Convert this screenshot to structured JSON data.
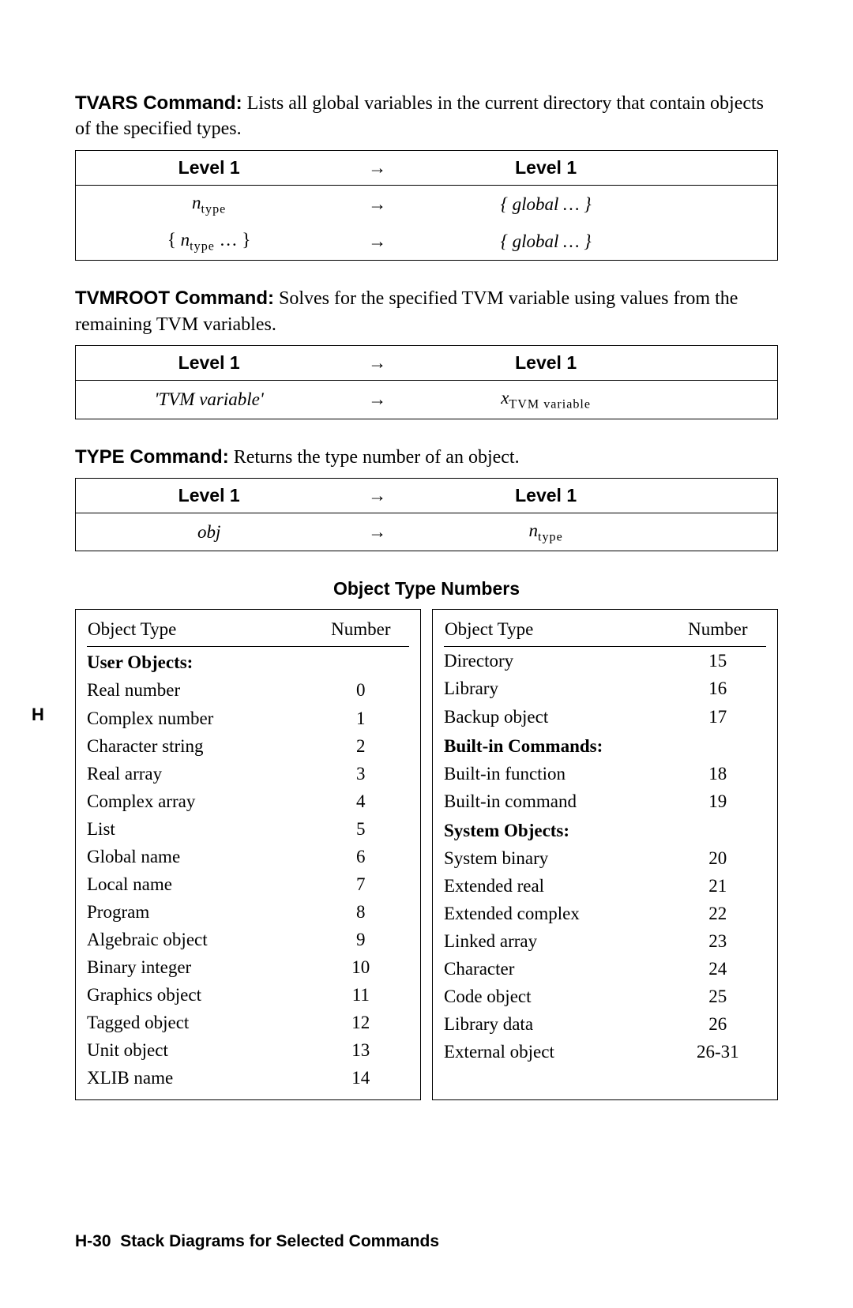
{
  "colors": {
    "text": "#000000",
    "background": "#ffffff",
    "border": "#000000"
  },
  "margin_letter": "H",
  "footer": {
    "page": "H-30",
    "title": "Stack Diagrams for Selected Commands"
  },
  "commands": {
    "tvars": {
      "name": "TVARS Command:",
      "desc": "Lists all global variables in the current directory that contain objects of the specified types.",
      "header_left": "Level 1",
      "header_right": "Level 1",
      "arrow": "→",
      "row1_left_var": "n",
      "row1_left_sub": "type",
      "row1_right": "{ global … }",
      "row2_left_pre": "{ ",
      "row2_left_var": "n",
      "row2_left_sub": "type",
      "row2_left_post": " … }",
      "row2_right": "{ global … }"
    },
    "tvmroot": {
      "name": "TVMROOT Command:",
      "desc": "Solves for the specified TVM variable using values from the remaining TVM variables.",
      "header_left": "Level 1",
      "header_right": "Level 1",
      "arrow": "→",
      "row1_left": "'TVM variable'",
      "row1_right_var": "x",
      "row1_right_sub": "TVM variable"
    },
    "type": {
      "name": "TYPE Command:",
      "desc": "Returns the type number of an object.",
      "header_left": "Level 1",
      "header_right": "Level 1",
      "arrow": "→",
      "row1_left": "obj",
      "row1_right_var": "n",
      "row1_right_sub": "type"
    }
  },
  "otn": {
    "title": "Object Type Numbers",
    "col_header_type": "Object Type",
    "col_header_num": "Number",
    "left": {
      "sections": {
        "0": "User Objects:"
      },
      "rows": [
        {
          "section": 0
        },
        {
          "type": "Real number",
          "num": "0"
        },
        {
          "type": "Complex number",
          "num": "1"
        },
        {
          "type": "Character string",
          "num": "2"
        },
        {
          "type": "Real array",
          "num": "3"
        },
        {
          "type": "Complex array",
          "num": "4"
        },
        {
          "type": "List",
          "num": "5"
        },
        {
          "type": "Global name",
          "num": "6"
        },
        {
          "type": "Local name",
          "num": "7"
        },
        {
          "type": "Program",
          "num": "8"
        },
        {
          "type": "Algebraic object",
          "num": "9"
        },
        {
          "type": "Binary integer",
          "num": "10"
        },
        {
          "type": "Graphics object",
          "num": "11"
        },
        {
          "type": "Tagged object",
          "num": "12"
        },
        {
          "type": "Unit object",
          "num": "13"
        },
        {
          "type": "XLIB name",
          "num": "14"
        }
      ]
    },
    "right": {
      "sections": {
        "0": "Built-in Commands:",
        "1": "System Objects:"
      },
      "rows": [
        {
          "type": "Directory",
          "num": "15"
        },
        {
          "type": "Library",
          "num": "16"
        },
        {
          "type": "Backup object",
          "num": "17"
        },
        {
          "section": 0
        },
        {
          "type": "Built-in function",
          "num": "18"
        },
        {
          "type": "Built-in command",
          "num": "19"
        },
        {
          "section": 1
        },
        {
          "type": "System binary",
          "num": "20"
        },
        {
          "type": "Extended real",
          "num": "21"
        },
        {
          "type": "Extended complex",
          "num": "22"
        },
        {
          "type": "Linked array",
          "num": "23"
        },
        {
          "type": "Character",
          "num": "24"
        },
        {
          "type": "Code object",
          "num": "25"
        },
        {
          "type": "Library data",
          "num": "26"
        },
        {
          "type": "External object",
          "num": "26-31"
        }
      ]
    }
  }
}
